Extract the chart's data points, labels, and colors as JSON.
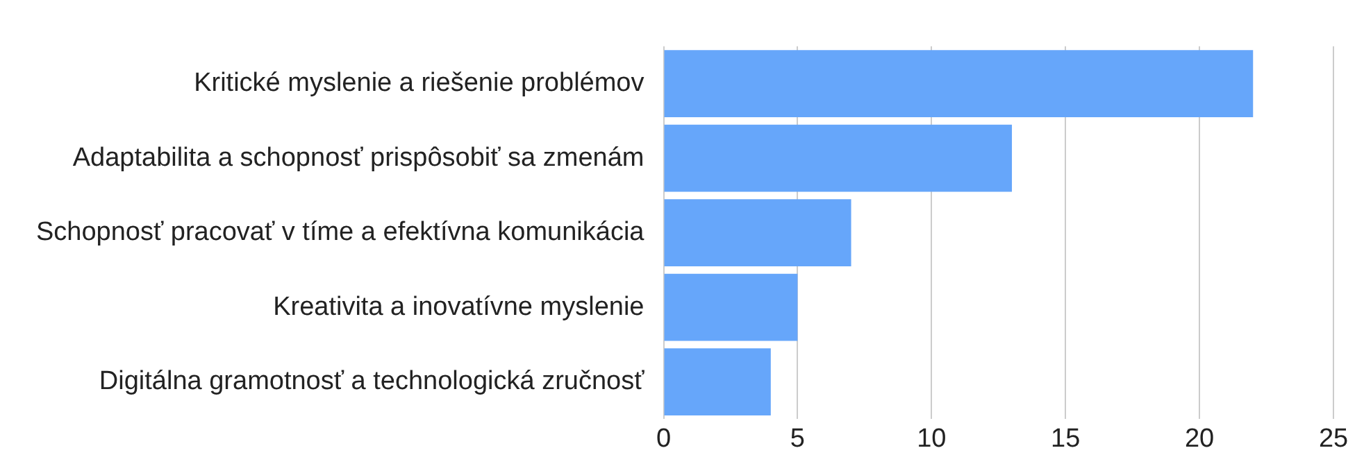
{
  "chart_data": {
    "type": "bar",
    "orientation": "horizontal",
    "categories": [
      "Kritické myslenie a riešenie problémov",
      "Adaptabilita a schopnosť prispôsobiť sa zmenám",
      "Schopnosť pracovať v tíme a efektívna komunikácia",
      "Kreativita a inovatívne myslenie",
      "Digitálna gramotnosť a technologická zručnosť"
    ],
    "values": [
      22,
      13,
      7,
      5,
      4
    ],
    "color": "#66a6fa",
    "xlim": [
      0,
      25
    ],
    "xticks": [
      0,
      5,
      10,
      15,
      20,
      25
    ],
    "grid": "x",
    "legend": false
  }
}
